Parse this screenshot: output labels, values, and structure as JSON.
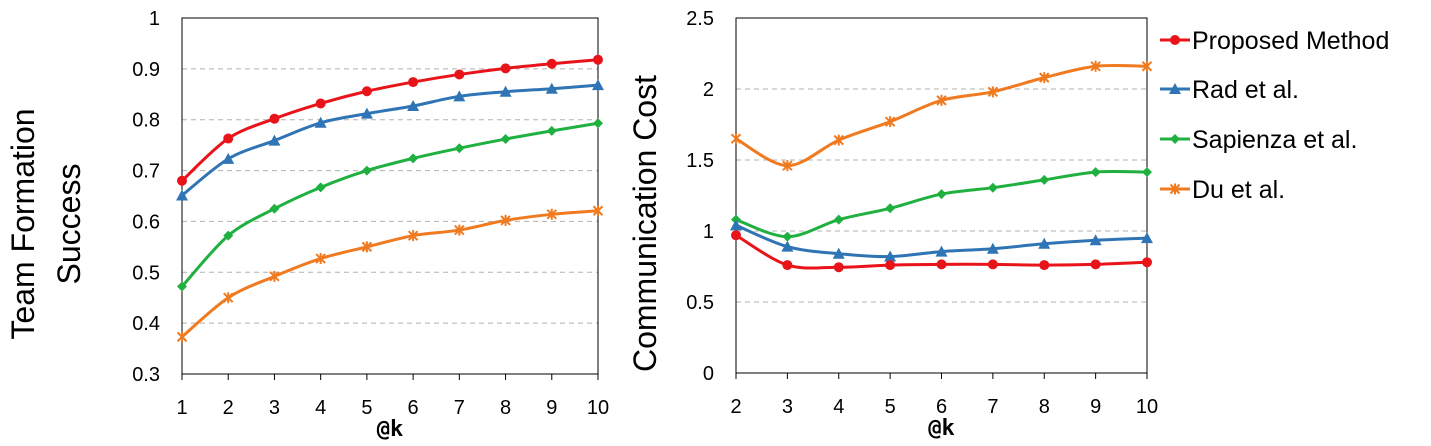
{
  "chart_data": [
    {
      "type": "line",
      "title": "",
      "xlabel": "@k",
      "ylabel_lines": [
        "Team Formation",
        "Success"
      ],
      "x": [
        1,
        2,
        3,
        4,
        5,
        6,
        7,
        8,
        9,
        10
      ],
      "xlim": [
        1,
        10
      ],
      "ylim": [
        0.3,
        1
      ],
      "yticks": [
        "0.3",
        "0.4",
        "0.5",
        "0.6",
        "0.7",
        "0.8",
        "0.9",
        "1"
      ],
      "grid": "horizontal-dashed",
      "series": [
        {
          "name": "Proposed Method",
          "color": "#e8141a",
          "marker": "circle",
          "values": [
            0.68,
            0.763,
            0.802,
            0.832,
            0.856,
            0.874,
            0.889,
            0.901,
            0.91,
            0.918
          ]
        },
        {
          "name": "Rad et al.",
          "color": "#2f75b5",
          "marker": "triangle",
          "values": [
            0.651,
            0.723,
            0.759,
            0.794,
            0.812,
            0.827,
            0.846,
            0.855,
            0.861,
            0.868
          ]
        },
        {
          "name": "Sapienza et al.",
          "color": "#20b040",
          "marker": "diamond",
          "values": [
            0.472,
            0.572,
            0.625,
            0.667,
            0.7,
            0.724,
            0.744,
            0.762,
            0.778,
            0.793
          ]
        },
        {
          "name": "Du et al.",
          "color": "#f07a20",
          "marker": "asterisk",
          "values": [
            0.373,
            0.45,
            0.492,
            0.527,
            0.55,
            0.572,
            0.583,
            0.602,
            0.614,
            0.621
          ]
        }
      ]
    },
    {
      "type": "line",
      "title": "",
      "xlabel": "@k",
      "ylabel_lines": [
        "Communication  Cost"
      ],
      "x": [
        2,
        3,
        4,
        5,
        6,
        7,
        8,
        9,
        10
      ],
      "xlim": [
        2,
        10
      ],
      "ylim": [
        0,
        2.5
      ],
      "yticks": [
        "0",
        "0.5",
        "1",
        "1.5",
        "2",
        "2.5"
      ],
      "grid": "horizontal-dashed",
      "legend": "right",
      "series": [
        {
          "name": "Proposed Method",
          "color": "#e8141a",
          "marker": "circle",
          "values": [
            0.97,
            0.76,
            0.745,
            0.76,
            0.765,
            0.765,
            0.76,
            0.765,
            0.78
          ]
        },
        {
          "name": "Rad et al.",
          "color": "#2f75b5",
          "marker": "triangle",
          "values": [
            1.04,
            0.89,
            0.84,
            0.82,
            0.855,
            0.875,
            0.91,
            0.935,
            0.95
          ]
        },
        {
          "name": "Sapienza et al.",
          "color": "#20b040",
          "marker": "diamond",
          "values": [
            1.08,
            0.96,
            1.08,
            1.16,
            1.26,
            1.305,
            1.36,
            1.415,
            1.415
          ]
        },
        {
          "name": "Du et al.",
          "color": "#f07a20",
          "marker": "asterisk",
          "values": [
            1.65,
            1.46,
            1.64,
            1.77,
            1.92,
            1.98,
            2.08,
            2.16,
            2.16
          ]
        }
      ]
    }
  ]
}
